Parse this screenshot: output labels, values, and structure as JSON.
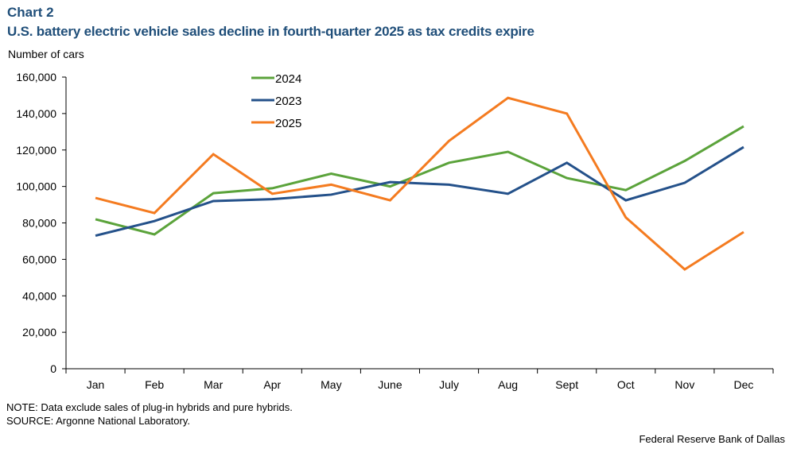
{
  "chart_data": {
    "type": "line",
    "label": "Chart 2",
    "title": "U.S. battery electric vehicle sales decline in fourth-quarter 2025 as tax credits expire",
    "ylabel": "Number of cars",
    "xlabel": "",
    "categories": [
      "Jan",
      "Feb",
      "Mar",
      "Apr",
      "May",
      "June",
      "July",
      "Aug",
      "Sept",
      "Oct",
      "Nov",
      "Dec"
    ],
    "ylim": [
      0,
      160000
    ],
    "yticks": [
      "0",
      "20,000",
      "40,000",
      "60,000",
      "80,000",
      "100,000",
      "120,000",
      "140,000",
      "160,000"
    ],
    "grid": false,
    "legend_position": "top-center",
    "series": [
      {
        "name": "2024",
        "color": "#5ba33b",
        "values": [
          82000,
          73700,
          96300,
          99000,
          107000,
          100000,
          113000,
          119000,
          104600,
          98000,
          114000,
          133000
        ]
      },
      {
        "name": "2023",
        "color": "#24518a",
        "values": [
          73000,
          81000,
          92000,
          93000,
          95500,
          102400,
          101000,
          96000,
          113000,
          92400,
          102000,
          121600
        ]
      },
      {
        "name": "2025",
        "color": "#f47b20",
        "values": [
          93700,
          85400,
          117700,
          96000,
          101000,
          92400,
          125000,
          148600,
          140000,
          83000,
          54500,
          75000
        ]
      }
    ]
  },
  "notes": {
    "note": "NOTE: Data exclude sales of plug-in hybrids and pure hybrids.",
    "source": "SOURCE: Argonne National Laboratory.",
    "credit": "Federal Reserve Bank of Dallas"
  }
}
